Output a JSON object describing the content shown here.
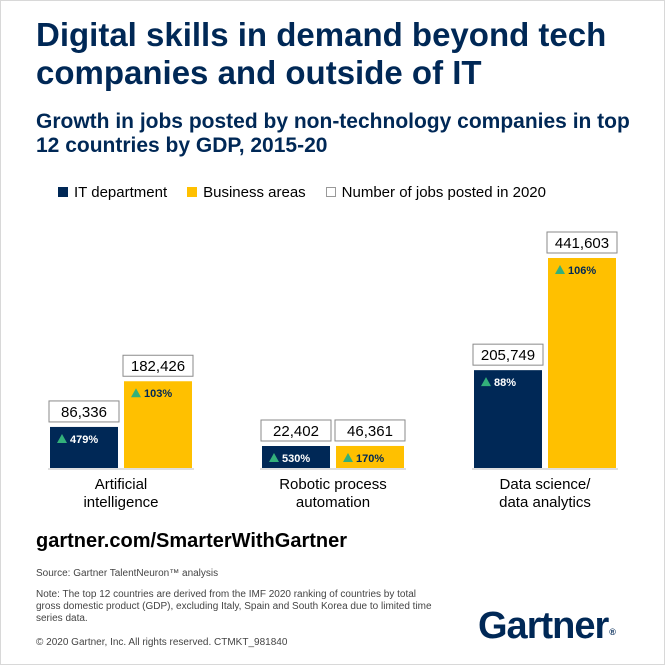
{
  "title": "Digital skills in demand beyond tech companies and outside of IT",
  "subtitle": "Growth in jobs posted by non-technology companies in top 12 countries by GDP, 2015-20",
  "legend": [
    {
      "label": "IT department",
      "color": "#002856"
    },
    {
      "label": "Business areas",
      "color": "#ffc000"
    },
    {
      "label": "Number of jobs posted in 2020",
      "color": "#ffffff"
    }
  ],
  "chart_data": {
    "type": "bar",
    "categories": [
      "Artificial intelligence",
      "Robotic process automation",
      "Data science/ data analytics"
    ],
    "category_lines": [
      [
        "Artificial",
        "intelligence"
      ],
      [
        "Robotic process",
        "automation"
      ],
      [
        "Data science/",
        "data analytics"
      ]
    ],
    "series": [
      {
        "name": "IT department",
        "color": "#002856",
        "values": [
          86336,
          22402,
          205749
        ],
        "growth": [
          "479%",
          "530%",
          "88%"
        ],
        "value_labels": [
          "86,336",
          "22,402",
          "205,749"
        ]
      },
      {
        "name": "Business areas",
        "color": "#ffc000",
        "values": [
          182426,
          46361,
          441603
        ],
        "growth": [
          "103%",
          "170%",
          "106%"
        ],
        "value_labels": [
          "182,426",
          "46,361",
          "441,603"
        ]
      }
    ],
    "ylim": [
      0,
      441603
    ]
  },
  "footer": {
    "url": "gartner.com/SmarterWithGartner",
    "source": "Source: Gartner TalentNeuron™ analysis",
    "note": "Note: The top 12 countries are derived from the IMF 2020 ranking of countries by total gross domestic product (GDP), excluding Italy, Spain and South Korea due to limited time series data.",
    "copyright": "© 2020 Gartner, Inc. All rights reserved. CTMKT_981840",
    "logo": "Gartner",
    "logo_mark": "®"
  }
}
